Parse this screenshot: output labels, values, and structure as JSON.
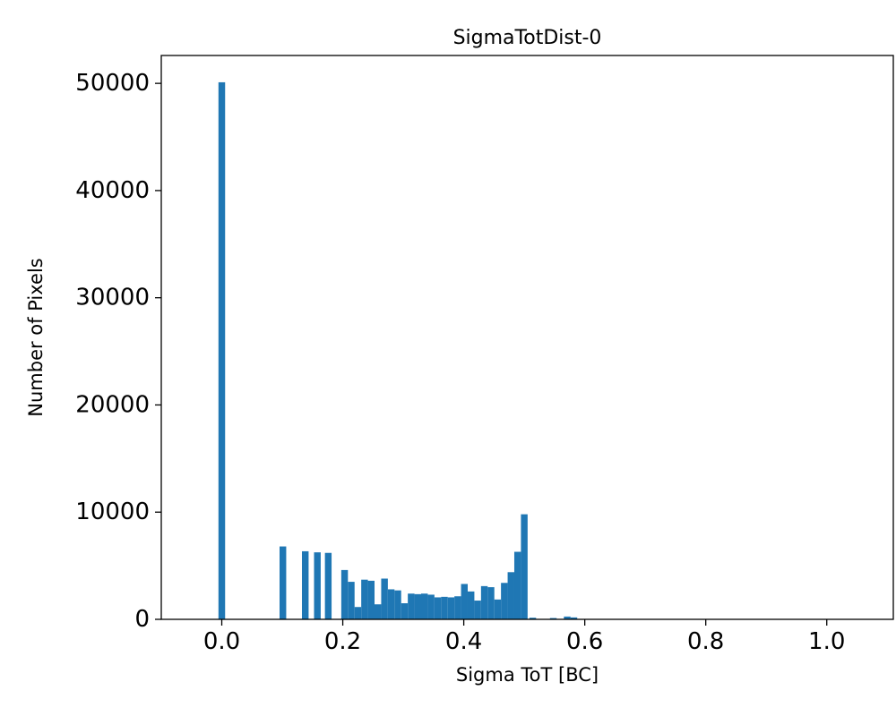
{
  "chart_data": {
    "type": "bar",
    "title": "SigmaTotDist-0",
    "xlabel": "Sigma ToT [BC]",
    "ylabel": "Number of Pixels",
    "xlim": [
      -0.1,
      1.11
    ],
    "ylim": [
      0,
      52600
    ],
    "grid": false,
    "legend": "none",
    "x_ticks": [
      0.0,
      0.2,
      0.4,
      0.6,
      0.8,
      1.0
    ],
    "x_tick_labels": [
      "0.0",
      "0.2",
      "0.4",
      "0.6",
      "0.8",
      "1.0"
    ],
    "y_ticks": [
      0,
      10000,
      20000,
      30000,
      40000,
      50000
    ],
    "y_tick_labels": [
      "0",
      "10000",
      "20000",
      "30000",
      "40000",
      "50000"
    ],
    "bar_color": "#1f77b4",
    "bin_width": 0.011,
    "bars": {
      "centers": [
        0.0,
        0.101,
        0.138,
        0.158,
        0.176,
        0.203,
        0.214,
        0.225,
        0.236,
        0.247,
        0.258,
        0.269,
        0.28,
        0.291,
        0.302,
        0.313,
        0.324,
        0.335,
        0.346,
        0.357,
        0.368,
        0.379,
        0.39,
        0.401,
        0.412,
        0.423,
        0.434,
        0.445,
        0.456,
        0.467,
        0.478,
        0.489,
        0.5,
        0.514,
        0.548,
        0.571,
        0.582
      ],
      "heights": [
        50100,
        6800,
        6350,
        6250,
        6200,
        4600,
        3500,
        1150,
        3700,
        3600,
        1400,
        3800,
        2800,
        2700,
        1500,
        2400,
        2350,
        2400,
        2300,
        2050,
        2100,
        2050,
        2150,
        3300,
        2600,
        1750,
        3100,
        3000,
        1850,
        3400,
        4400,
        6300,
        9800,
        150,
        120,
        260,
        180
      ]
    }
  }
}
